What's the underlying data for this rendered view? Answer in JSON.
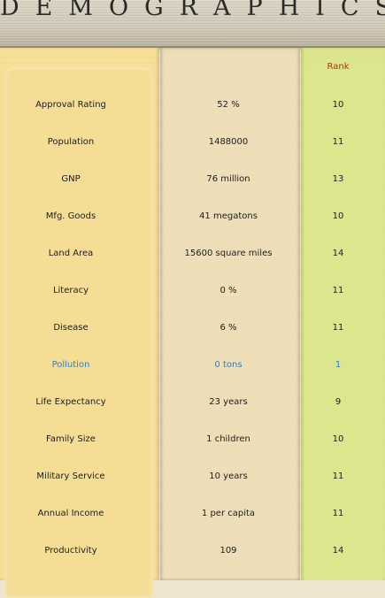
{
  "header": {
    "title": "DEMOGRAPHICS"
  },
  "columns": {
    "rank_label": "Rank"
  },
  "colors": {
    "highlight": "#2f7fc0",
    "rank_header": "#c0281e"
  },
  "rows": [
    {
      "label": "Approval Rating",
      "value": "52 %",
      "rank": "10"
    },
    {
      "label": "Population",
      "value": "1488000",
      "rank": "11"
    },
    {
      "label": "GNP",
      "value": "76 million",
      "rank": "13"
    },
    {
      "label": "Mfg. Goods",
      "value": "41 megatons",
      "rank": "10"
    },
    {
      "label": "Land Area",
      "value": "15600 square miles",
      "rank": "14"
    },
    {
      "label": "Literacy",
      "value": "0 %",
      "rank": "11"
    },
    {
      "label": "Disease",
      "value": "6 %",
      "rank": "11"
    },
    {
      "label": "Pollution",
      "value": "0 tons",
      "rank": "1",
      "highlighted": true
    },
    {
      "label": "Life Expectancy",
      "value": "23 years",
      "rank": "9"
    },
    {
      "label": "Family Size",
      "value": "1 children",
      "rank": "10"
    },
    {
      "label": "Military Service",
      "value": "10 years",
      "rank": "11"
    },
    {
      "label": "Annual Income",
      "value": "1 per capita",
      "rank": "11"
    },
    {
      "label": "Productivity",
      "value": "109",
      "rank": "14"
    }
  ]
}
